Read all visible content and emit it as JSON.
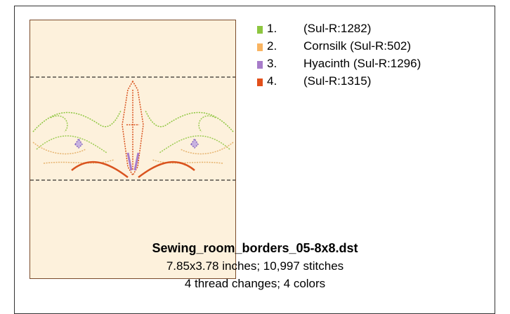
{
  "legend": [
    {
      "number": "1.",
      "label": "(Sul-R:1282)",
      "color": "#8dc63f"
    },
    {
      "number": "2.",
      "label": "Cornsilk (Sul-R:502)",
      "color": "#f9b461"
    },
    {
      "number": "3.",
      "label": "Hyacinth (Sul-R:1296)",
      "color": "#a77cc9"
    },
    {
      "number": "4.",
      "label": "(Sul-R:1315)",
      "color": "#e2501b"
    }
  ],
  "caption": {
    "title": "Sewing_room_borders_05-8x8.dst",
    "size": "7.85x3.78 inches; 10,997 stitches",
    "changes": "4 thread changes; 4 colors"
  }
}
